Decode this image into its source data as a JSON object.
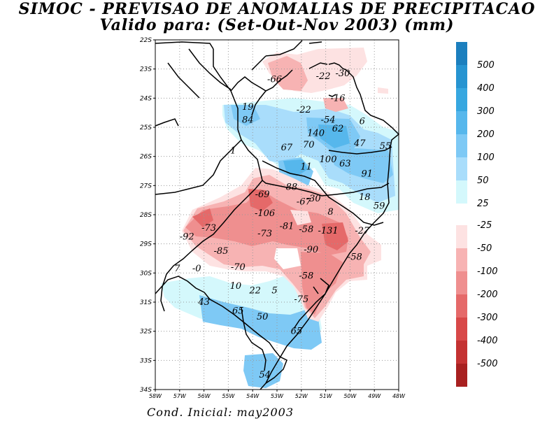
{
  "title": {
    "line1": "SIMOC - PREVISAO DE ANOMALIAS DE PRECIPITACAO",
    "line2": "Valido para: (Set-Out-Nov 2003) (mm)"
  },
  "footer": "Cond. Inicial: may2003",
  "map": {
    "lat_labels": [
      "22S",
      "23S",
      "24S",
      "25S",
      "26S",
      "27S",
      "28S",
      "29S",
      "30S",
      "31S",
      "32S",
      "33S",
      "34S"
    ],
    "lon_labels": [
      "58W",
      "57W",
      "56W",
      "55W",
      "54W",
      "53W",
      "52W",
      "51W",
      "50W",
      "49W",
      "48W"
    ],
    "lon_range": [
      -58,
      -48
    ],
    "lat_range": [
      -22,
      -34
    ],
    "anomaly_values": [
      {
        "label": "-66",
        "lon": -53.1,
        "lat": -23.35
      },
      {
        "label": "-22",
        "lon": -51.1,
        "lat": -23.25
      },
      {
        "label": "-30",
        "lon": -50.3,
        "lat": -23.15
      },
      {
        "label": "-16",
        "lon": -50.5,
        "lat": -24.0
      },
      {
        "label": "19",
        "lon": -54.2,
        "lat": -24.3
      },
      {
        "label": "-22",
        "lon": -51.9,
        "lat": -24.4
      },
      {
        "label": "84",
        "lon": -54.2,
        "lat": -24.75
      },
      {
        "label": "-54",
        "lon": -50.9,
        "lat": -24.75
      },
      {
        "label": "6",
        "lon": -49.5,
        "lat": -24.8
      },
      {
        "label": "62",
        "lon": -50.5,
        "lat": -25.05
      },
      {
        "label": "140",
        "lon": -51.4,
        "lat": -25.2
      },
      {
        "label": "70",
        "lon": -51.7,
        "lat": -25.6
      },
      {
        "label": "67",
        "lon": -52.6,
        "lat": -25.7
      },
      {
        "label": "47",
        "lon": -49.6,
        "lat": -25.55
      },
      {
        "label": "55",
        "lon": -48.55,
        "lat": -25.65
      },
      {
        "label": "1",
        "lon": -54.8,
        "lat": -25.8
      },
      {
        "label": "100",
        "lon": -50.9,
        "lat": -26.1
      },
      {
        "label": "63",
        "lon": -50.2,
        "lat": -26.25
      },
      {
        "label": "11",
        "lon": -51.8,
        "lat": -26.35
      },
      {
        "label": "91",
        "lon": -49.3,
        "lat": -26.6
      },
      {
        "label": "88",
        "lon": -52.4,
        "lat": -27.05
      },
      {
        "label": "-69",
        "lon": -53.6,
        "lat": -27.3
      },
      {
        "label": "-67",
        "lon": -51.9,
        "lat": -27.55
      },
      {
        "label": "-30",
        "lon": -51.5,
        "lat": -27.45
      },
      {
        "label": "18",
        "lon": -49.4,
        "lat": -27.4
      },
      {
        "label": "59",
        "lon": -48.8,
        "lat": -27.7
      },
      {
        "label": "8",
        "lon": -50.8,
        "lat": -27.9
      },
      {
        "label": "-106",
        "lon": -53.5,
        "lat": -27.95
      },
      {
        "label": "-73",
        "lon": -55.8,
        "lat": -28.45
      },
      {
        "label": "-81",
        "lon": -52.6,
        "lat": -28.4
      },
      {
        "label": "-58",
        "lon": -51.8,
        "lat": -28.5
      },
      {
        "label": "-131",
        "lon": -50.9,
        "lat": -28.55
      },
      {
        "label": "-27",
        "lon": -49.5,
        "lat": -28.55
      },
      {
        "label": "-92",
        "lon": -56.7,
        "lat": -28.75
      },
      {
        "label": "-73",
        "lon": -53.5,
        "lat": -28.65
      },
      {
        "label": "-85",
        "lon": -55.3,
        "lat": -29.25
      },
      {
        "label": "-90",
        "lon": -51.6,
        "lat": -29.2
      },
      {
        "label": "-58",
        "lon": -49.8,
        "lat": -29.45
      },
      {
        "label": "-70",
        "lon": -54.6,
        "lat": -29.8
      },
      {
        "label": "7",
        "lon": -57.1,
        "lat": -29.85
      },
      {
        "label": "-0",
        "lon": -56.3,
        "lat": -29.85
      },
      {
        "label": "-58",
        "lon": -51.8,
        "lat": -30.1
      },
      {
        "label": "10",
        "lon": -54.7,
        "lat": -30.45
      },
      {
        "label": "22",
        "lon": -53.9,
        "lat": -30.6
      },
      {
        "label": "5",
        "lon": -53.1,
        "lat": -30.6
      },
      {
        "label": "-75",
        "lon": -52.0,
        "lat": -30.9
      },
      {
        "label": "43",
        "lon": -56.0,
        "lat": -31.0
      },
      {
        "label": "65",
        "lon": -54.6,
        "lat": -31.3
      },
      {
        "label": "50",
        "lon": -53.6,
        "lat": -31.5
      },
      {
        "label": "65",
        "lon": -52.2,
        "lat": -32.0
      },
      {
        "label": "54",
        "lon": -53.5,
        "lat": -33.5
      }
    ]
  },
  "colorbar": {
    "positive": [
      {
        "label": "500",
        "color": "#1c7fbe"
      },
      {
        "label": "400",
        "color": "#2794d1"
      },
      {
        "label": "300",
        "color": "#37a7e0"
      },
      {
        "label": "200",
        "color": "#56b7ec"
      },
      {
        "label": "100",
        "color": "#7ec9f5"
      },
      {
        "label": "50",
        "color": "#a9ddfb"
      },
      {
        "label": "25",
        "color": "#d4f8fc"
      }
    ],
    "negative": [
      {
        "label": "-25",
        "color": "#fde2e2"
      },
      {
        "label": "-50",
        "color": "#f7b3b3"
      },
      {
        "label": "-100",
        "color": "#ef8f8f"
      },
      {
        "label": "-200",
        "color": "#e56969"
      },
      {
        "label": "-300",
        "color": "#d84848"
      },
      {
        "label": "-400",
        "color": "#c43232"
      },
      {
        "label": "-500",
        "color": "#a82020"
      }
    ]
  }
}
